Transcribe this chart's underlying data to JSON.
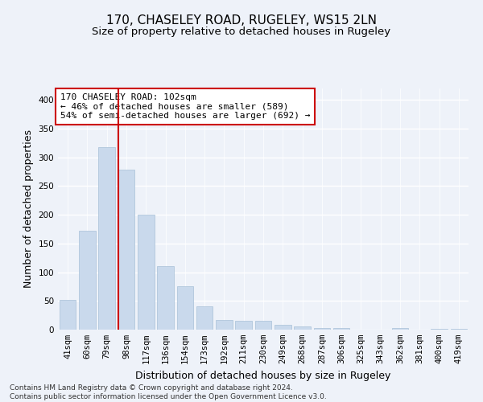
{
  "title": "170, CHASELEY ROAD, RUGELEY, WS15 2LN",
  "subtitle": "Size of property relative to detached houses in Rugeley",
  "xlabel": "Distribution of detached houses by size in Rugeley",
  "ylabel": "Number of detached properties",
  "categories": [
    "41sqm",
    "60sqm",
    "79sqm",
    "98sqm",
    "117sqm",
    "136sqm",
    "154sqm",
    "173sqm",
    "192sqm",
    "211sqm",
    "230sqm",
    "249sqm",
    "268sqm",
    "287sqm",
    "306sqm",
    "325sqm",
    "343sqm",
    "362sqm",
    "381sqm",
    "400sqm",
    "419sqm"
  ],
  "values": [
    52,
    172,
    318,
    278,
    200,
    110,
    75,
    40,
    17,
    16,
    16,
    9,
    5,
    3,
    3,
    0,
    0,
    3,
    0,
    2,
    2
  ],
  "bar_color": "#c9d9ec",
  "bar_edge_color": "#a8c0d8",
  "vline_color": "#cc0000",
  "vline_pos": 2.575,
  "annotation_text": "170 CHASELEY ROAD: 102sqm\n← 46% of detached houses are smaller (589)\n54% of semi-detached houses are larger (692) →",
  "annotation_box_color": "#ffffff",
  "annotation_box_edge": "#cc0000",
  "ylim": [
    0,
    420
  ],
  "yticks": [
    0,
    50,
    100,
    150,
    200,
    250,
    300,
    350,
    400
  ],
  "background_color": "#eef2f9",
  "grid_color": "#ffffff",
  "footer": "Contains HM Land Registry data © Crown copyright and database right 2024.\nContains public sector information licensed under the Open Government Licence v3.0.",
  "title_fontsize": 11,
  "subtitle_fontsize": 9.5,
  "axis_label_fontsize": 9,
  "tick_fontsize": 7.5,
  "annotation_fontsize": 8,
  "footer_fontsize": 6.5
}
